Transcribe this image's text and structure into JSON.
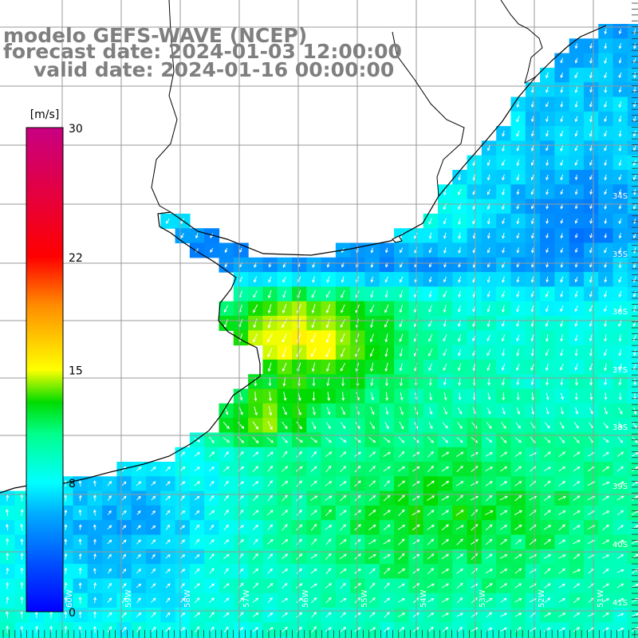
{
  "title": {
    "model": "modelo GEFS-WAVE (NCEP)",
    "forecast": "forecast date: 2024-01-03 12:00:00",
    "valid": "valid date: 2024-01-16 00:00:00"
  },
  "colorbar": {
    "unit": "[m/s]",
    "min": 0,
    "max": 30,
    "ticks": [
      {
        "value": 30,
        "label": "30"
      },
      {
        "value": 22,
        "label": "22"
      },
      {
        "value": 15,
        "label": "15"
      },
      {
        "value": 8,
        "label": "8"
      },
      {
        "value": 0,
        "label": "0"
      }
    ]
  },
  "axes": {
    "lat_labels": [
      "34S",
      "35S",
      "36S",
      "37S",
      "38S",
      "39S",
      "40S",
      "41S"
    ],
    "lon_labels": [
      "60W",
      "59W",
      "58W",
      "57W",
      "56W",
      "55W",
      "54W",
      "53W",
      "52W",
      "51W"
    ]
  },
  "colors": {
    "land": "#ffffff",
    "coast": "#000000",
    "grid": "#9a9a9a",
    "vector": "#ffffff",
    "title": "#7f7f7f"
  }
}
